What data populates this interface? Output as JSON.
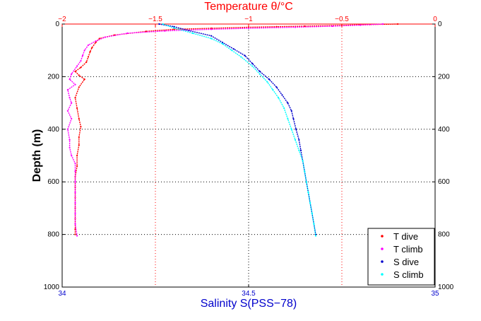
{
  "chart_data": {
    "type": "scatter",
    "top_axis": {
      "label": "Temperature θ/°C",
      "range": [
        -2,
        0
      ],
      "ticks": [
        -2,
        -1.5,
        -1,
        -0.5,
        0
      ],
      "tick_labels": [
        "−2",
        "−1.5",
        "−1",
        "−0.5",
        "0"
      ],
      "color": "#ff0000"
    },
    "bottom_axis": {
      "label": "Salinity S(PSS−78)",
      "range": [
        34,
        35
      ],
      "ticks": [
        34,
        34.5,
        35
      ],
      "tick_labels": [
        "34",
        "34.5",
        "35"
      ],
      "color": "#0000cc"
    },
    "y_axis": {
      "label": "Depth (m)",
      "range": [
        0,
        1000
      ],
      "reversed": true,
      "ticks": [
        0,
        200,
        400,
        600,
        800,
        1000
      ],
      "tick_labels": [
        "0",
        "200",
        "400",
        "600",
        "800",
        "1000"
      ]
    },
    "grid": "dotted",
    "legend_position": "bottom-right",
    "series": [
      {
        "name": "T dive",
        "axis": "temperature",
        "color": "#ff0000",
        "points": [
          [
            -0.2,
            0
          ],
          [
            -0.35,
            2
          ],
          [
            -0.5,
            5
          ],
          [
            -0.7,
            8
          ],
          [
            -0.85,
            10
          ],
          [
            -1.0,
            12
          ],
          [
            -1.2,
            16
          ],
          [
            -1.4,
            20
          ],
          [
            -1.55,
            28
          ],
          [
            -1.72,
            42
          ],
          [
            -1.8,
            55
          ],
          [
            -1.82,
            70
          ],
          [
            -1.84,
            90
          ],
          [
            -1.85,
            105
          ],
          [
            -1.86,
            125
          ],
          [
            -1.87,
            145
          ],
          [
            -1.9,
            165
          ],
          [
            -1.93,
            180
          ],
          [
            -1.91,
            195
          ],
          [
            -1.88,
            210
          ],
          [
            -1.91,
            240
          ],
          [
            -1.93,
            280
          ],
          [
            -1.92,
            320
          ],
          [
            -1.91,
            360
          ],
          [
            -1.9,
            390
          ],
          [
            -1.91,
            430
          ],
          [
            -1.91,
            460
          ],
          [
            -1.92,
            500
          ],
          [
            -1.92,
            540
          ],
          [
            -1.93,
            580
          ],
          [
            -1.93,
            620
          ],
          [
            -1.93,
            660
          ],
          [
            -1.93,
            700
          ],
          [
            -1.93,
            740
          ],
          [
            -1.93,
            780
          ],
          [
            -1.93,
            800
          ]
        ]
      },
      {
        "name": "T climb",
        "axis": "temperature",
        "color": "#ff00ff",
        "points": [
          [
            -0.28,
            0
          ],
          [
            -0.4,
            4
          ],
          [
            -0.55,
            8
          ],
          [
            -0.75,
            12
          ],
          [
            -1.0,
            16
          ],
          [
            -1.2,
            20
          ],
          [
            -1.45,
            26
          ],
          [
            -1.65,
            35
          ],
          [
            -1.77,
            50
          ],
          [
            -1.82,
            65
          ],
          [
            -1.86,
            80
          ],
          [
            -1.88,
            100
          ],
          [
            -1.89,
            120
          ],
          [
            -1.9,
            140
          ],
          [
            -1.92,
            160
          ],
          [
            -1.95,
            190
          ],
          [
            -1.96,
            210
          ],
          [
            -1.93,
            230
          ],
          [
            -1.97,
            250
          ],
          [
            -1.96,
            280
          ],
          [
            -1.95,
            300
          ],
          [
            -1.97,
            330
          ],
          [
            -1.95,
            360
          ],
          [
            -1.97,
            400
          ],
          [
            -1.96,
            440
          ],
          [
            -1.96,
            470
          ],
          [
            -1.95,
            500
          ],
          [
            -1.93,
            530
          ],
          [
            -1.93,
            560
          ],
          [
            -1.93,
            600
          ],
          [
            -1.93,
            640
          ],
          [
            -1.93,
            680
          ],
          [
            -1.93,
            720
          ],
          [
            -1.93,
            760
          ],
          [
            -1.92,
            805
          ]
        ]
      },
      {
        "name": "S dive",
        "axis": "salinity",
        "color": "#0000cc",
        "points": [
          [
            34.26,
            0
          ],
          [
            34.3,
            10
          ],
          [
            34.34,
            25
          ],
          [
            34.4,
            45
          ],
          [
            34.43,
            70
          ],
          [
            34.46,
            95
          ],
          [
            34.49,
            120
          ],
          [
            34.51,
            150
          ],
          [
            34.53,
            180
          ],
          [
            34.555,
            210
          ],
          [
            34.575,
            240
          ],
          [
            34.59,
            270
          ],
          [
            34.605,
            300
          ],
          [
            34.615,
            330
          ],
          [
            34.62,
            360
          ],
          [
            34.627,
            400
          ],
          [
            34.635,
            440
          ],
          [
            34.64,
            480
          ],
          [
            34.645,
            520
          ],
          [
            34.65,
            560
          ],
          [
            34.655,
            600
          ],
          [
            34.66,
            640
          ],
          [
            34.665,
            680
          ],
          [
            34.67,
            720
          ],
          [
            34.675,
            760
          ],
          [
            34.68,
            800
          ]
        ]
      },
      {
        "name": "S climb",
        "axis": "salinity",
        "color": "#00ffff",
        "points": [
          [
            34.27,
            0
          ],
          [
            34.3,
            15
          ],
          [
            34.35,
            35
          ],
          [
            34.4,
            55
          ],
          [
            34.43,
            75
          ],
          [
            34.455,
            100
          ],
          [
            34.48,
            125
          ],
          [
            34.51,
            160
          ],
          [
            34.53,
            190
          ],
          [
            34.55,
            220
          ],
          [
            34.565,
            250
          ],
          [
            34.58,
            280
          ],
          [
            34.595,
            320
          ],
          [
            34.605,
            360
          ],
          [
            34.615,
            400
          ],
          [
            34.625,
            440
          ],
          [
            34.635,
            480
          ],
          [
            34.645,
            520
          ],
          [
            34.65,
            560
          ],
          [
            34.655,
            600
          ],
          [
            34.66,
            640
          ],
          [
            34.665,
            680
          ],
          [
            34.67,
            720
          ],
          [
            34.675,
            760
          ],
          [
            34.68,
            805
          ]
        ]
      }
    ]
  }
}
